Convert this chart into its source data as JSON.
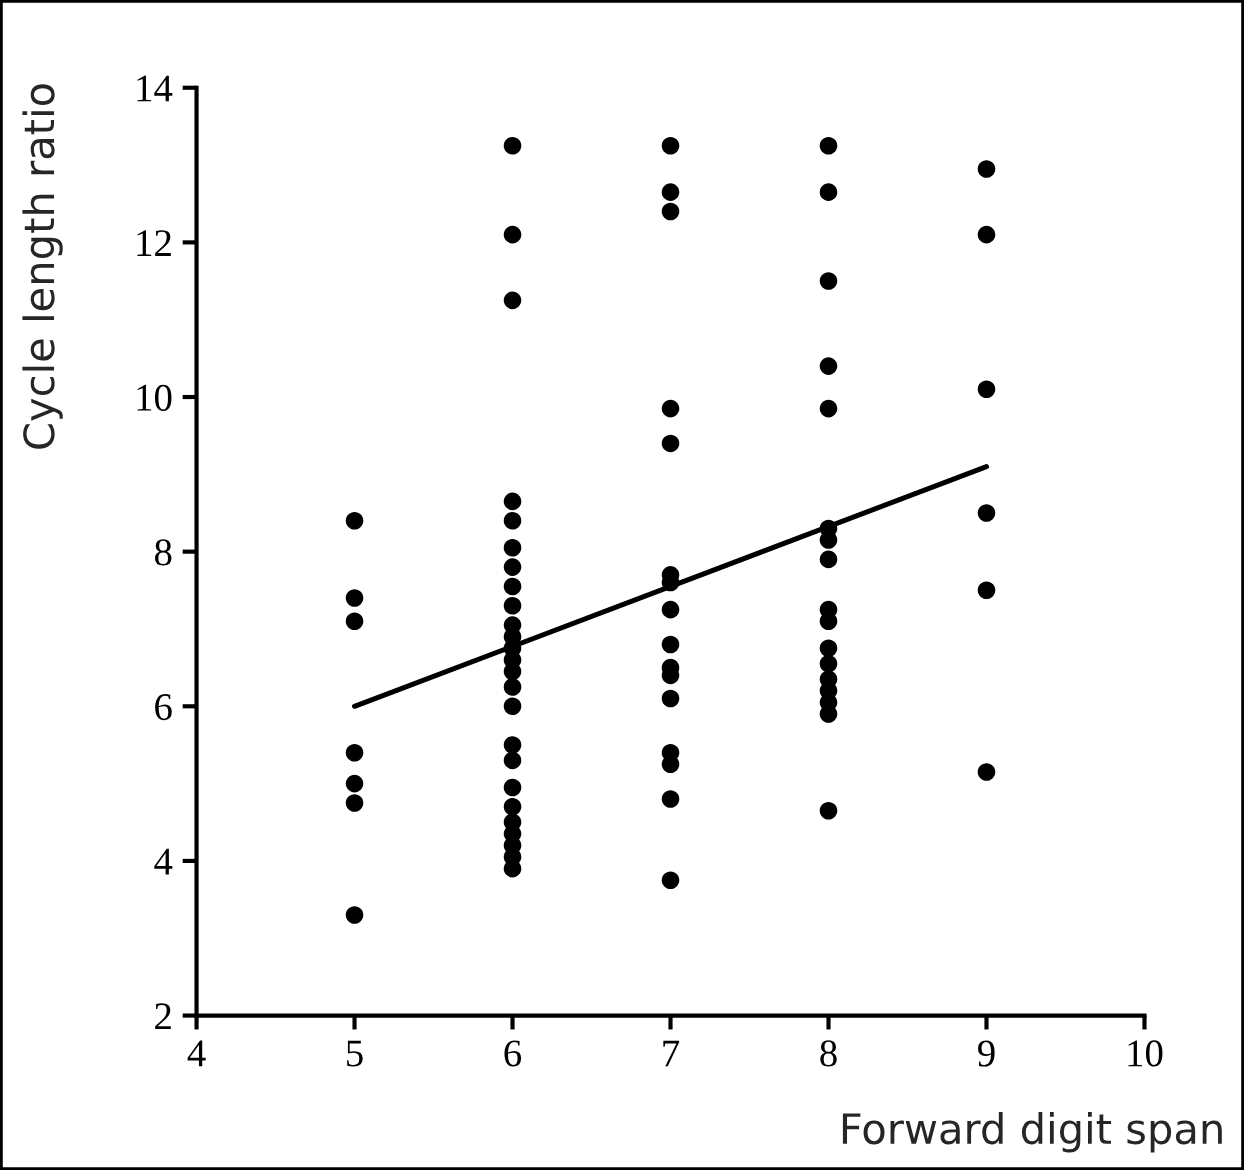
{
  "chart_data": {
    "type": "scatter",
    "xlabel": "Forward digit span",
    "ylabel": "Cycle length ratio",
    "xlim": [
      4,
      10
    ],
    "ylim": [
      2,
      14
    ],
    "xticks": [
      4,
      5,
      6,
      7,
      8,
      9,
      10
    ],
    "yticks": [
      2,
      4,
      6,
      8,
      10,
      12,
      14
    ],
    "grid": false,
    "series": [
      {
        "marker": "circle",
        "color": "#000000",
        "x": [
          5,
          5,
          5,
          5,
          5,
          5,
          5,
          6,
          6,
          6,
          6,
          6,
          6,
          6,
          6,
          6,
          6,
          6,
          6,
          6,
          6,
          6,
          6,
          6,
          6,
          6,
          6,
          6,
          6,
          6,
          6,
          6,
          7,
          7,
          7,
          7,
          7,
          7,
          7,
          7,
          7,
          7,
          7,
          7,
          7,
          7,
          7,
          7,
          8,
          8,
          8,
          8,
          8,
          8,
          8,
          8,
          8,
          8,
          8,
          8,
          8,
          8,
          8,
          8,
          8,
          9,
          9,
          9,
          9,
          9,
          9
        ],
        "values": [
          8.4,
          7.4,
          7.1,
          5.4,
          5.0,
          4.75,
          3.3,
          13.25,
          12.1,
          11.25,
          8.65,
          8.4,
          8.05,
          7.8,
          7.55,
          7.3,
          7.05,
          6.9,
          6.75,
          6.6,
          6.45,
          6.25,
          6.0,
          5.5,
          5.3,
          4.95,
          4.7,
          4.5,
          4.35,
          4.2,
          4.05,
          3.9,
          13.25,
          12.65,
          12.4,
          9.85,
          9.4,
          7.7,
          7.6,
          7.25,
          6.8,
          6.5,
          6.4,
          6.1,
          5.4,
          5.25,
          4.8,
          3.75,
          13.25,
          12.65,
          11.5,
          10.4,
          9.85,
          8.3,
          8.15,
          7.9,
          7.25,
          7.1,
          6.75,
          6.55,
          6.35,
          6.2,
          6.05,
          5.9,
          4.65,
          12.95,
          12.1,
          10.1,
          8.5,
          7.5,
          5.15
        ]
      },
      {
        "type": "line",
        "color": "#000000",
        "x": [
          5,
          9
        ],
        "values": [
          6.0,
          9.1
        ]
      }
    ]
  }
}
